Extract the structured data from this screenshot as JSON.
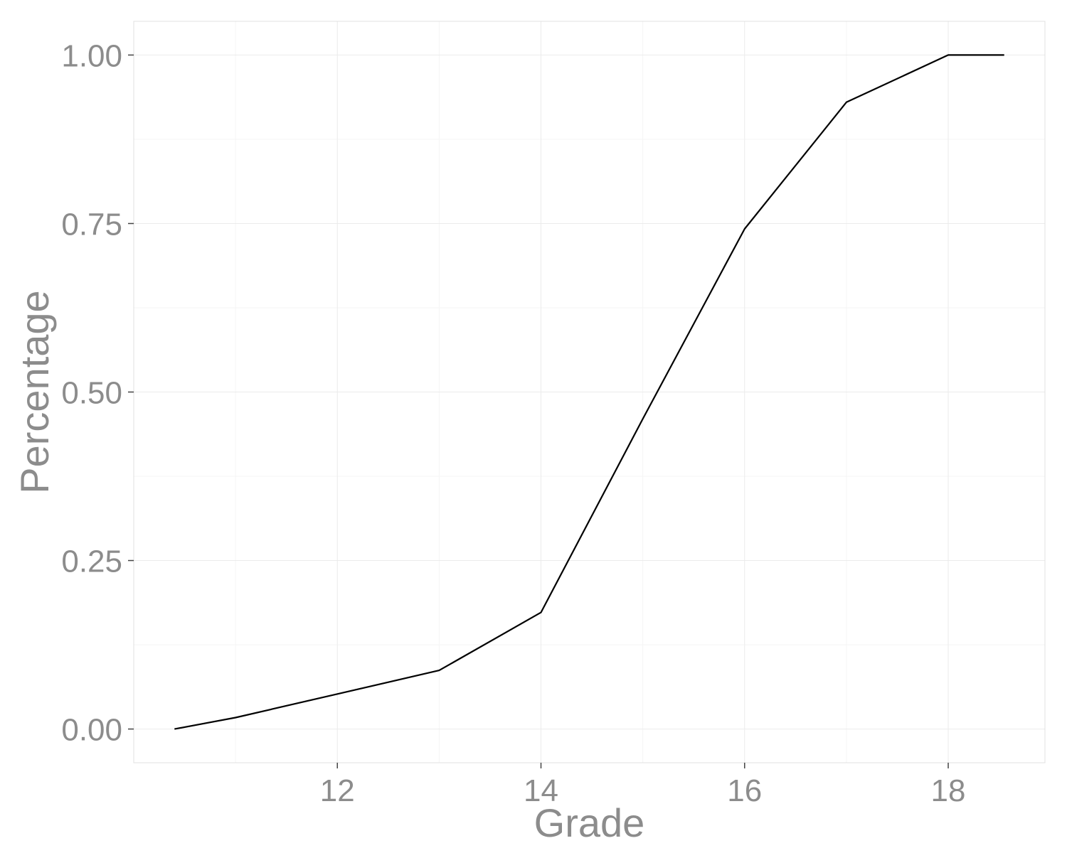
{
  "chart_data": {
    "type": "line",
    "title": "",
    "xlabel": "Grade",
    "ylabel": "Percentage",
    "xlim": [
      10.0,
      18.95
    ],
    "ylim": [
      -0.05,
      1.05
    ],
    "x_ticks": [
      {
        "value": 12,
        "label": "12"
      },
      {
        "value": 14,
        "label": "14"
      },
      {
        "value": 16,
        "label": "16"
      },
      {
        "value": 18,
        "label": "18"
      }
    ],
    "x_minor_ticks": [
      11,
      13,
      15,
      17
    ],
    "y_ticks": [
      {
        "value": 0.0,
        "label": "0.00"
      },
      {
        "value": 0.25,
        "label": "0.25"
      },
      {
        "value": 0.5,
        "label": "0.50"
      },
      {
        "value": 0.75,
        "label": "0.75"
      },
      {
        "value": 1.0,
        "label": "1.00"
      }
    ],
    "y_minor_ticks": [
      0.125,
      0.375,
      0.625,
      0.875
    ],
    "grid": true,
    "line_color": "#000000",
    "series": [
      {
        "x": [
          10.4,
          11.0,
          12.0,
          13.0,
          14.0,
          15.0,
          16.0,
          17.0,
          18.0,
          18.55
        ],
        "values": [
          0.0,
          0.017,
          0.052,
          0.087,
          0.173,
          0.46,
          0.742,
          0.93,
          1.0,
          1.0
        ]
      }
    ]
  }
}
